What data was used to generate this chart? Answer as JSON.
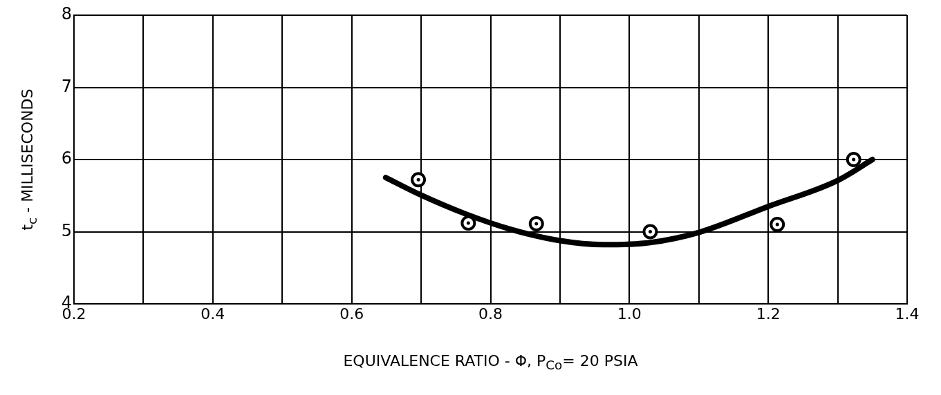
{
  "chart_data": {
    "type": "scatter",
    "xlabel": "EQUIVALENCE RATIO - Φ, P$_{Co}$= 20 PSIA",
    "ylabel": "t$_{c}$ - MILLISECONDS",
    "xlim": [
      0.2,
      1.4
    ],
    "xticks": [
      0.2,
      {
        "value": 0.3,
        "label": null
      },
      0.4,
      {
        "value": 0.5,
        "label": null
      },
      0.6,
      {
        "value": 0.7,
        "label": null
      },
      0.8,
      {
        "value": 0.9,
        "label": null
      },
      {
        "value": 1.0,
        "label": "1.0"
      },
      {
        "value": 1.1,
        "label": null
      },
      1.2,
      {
        "value": 1.3,
        "label": null
      },
      1.4
    ],
    "ylim": [
      4,
      8
    ],
    "yticks": [
      4,
      5,
      6,
      7,
      8
    ],
    "grid": true,
    "legend": false,
    "marker": "circle",
    "series": [
      {
        "color": "#000000",
        "x": [
          0.696,
          0.768,
          0.866,
          1.03,
          1.213,
          1.323
        ],
        "values": [
          5.72,
          5.12,
          5.11,
          5.0,
          5.1,
          6.0
        ]
      },
      {
        "type": "line",
        "color": "#000000",
        "marker": "none",
        "x": [
          0.649,
          0.697,
          0.763,
          0.83,
          0.897,
          0.963,
          1.03,
          1.1,
          1.2,
          1.3,
          1.35
        ],
        "values": [
          5.75,
          5.52,
          5.25,
          5.03,
          4.88,
          4.82,
          4.85,
          4.99,
          5.35,
          5.71,
          6.0
        ]
      }
    ]
  }
}
